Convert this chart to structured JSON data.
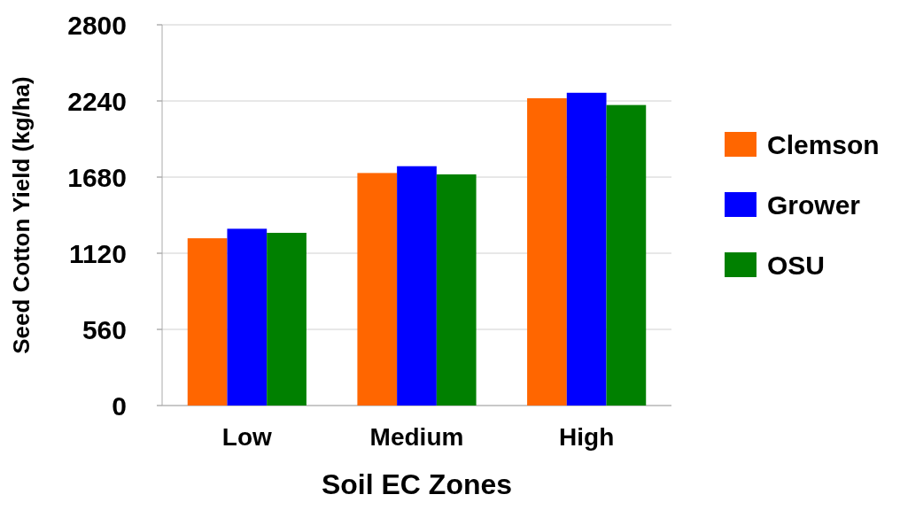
{
  "chart_data": {
    "type": "bar",
    "xlabel": "Soil EC Zones",
    "ylabel": "Seed Cotton Yield (kg/ha)",
    "categories": [
      "Low",
      "Medium",
      "High"
    ],
    "series": [
      {
        "name": "Clemson",
        "color": "#ff6600",
        "values": [
          1230,
          1710,
          2260
        ]
      },
      {
        "name": "Grower",
        "color": "#0000ff",
        "values": [
          1300,
          1760,
          2300
        ]
      },
      {
        "name": "OSU",
        "color": "#008000",
        "values": [
          1270,
          1700,
          2210
        ]
      }
    ],
    "ylim": [
      0,
      2800
    ],
    "yticks": [
      0,
      560,
      1120,
      1680,
      2240,
      2800
    ],
    "grid": "y",
    "legend": "right"
  }
}
